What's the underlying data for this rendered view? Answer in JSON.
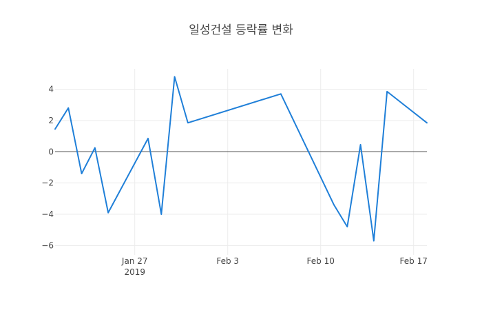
{
  "chart_data": {
    "type": "line",
    "title": "일성건설 등락률 변화",
    "xlabel": "",
    "ylabel": "",
    "x_tick_labels": [
      "Jan 27",
      "Feb 3",
      "Feb 10",
      "Feb 17"
    ],
    "x_tick_sublabels": [
      "2019",
      "",
      "",
      ""
    ],
    "x_tick_dates": [
      "2019-01-27",
      "2019-02-03",
      "2019-02-10",
      "2019-02-17"
    ],
    "xlim": [
      "2019-01-21",
      "2019-02-18"
    ],
    "ylim": [
      -6.6,
      5.3
    ],
    "y_ticks": [
      -6,
      -4,
      -2,
      0,
      2,
      4
    ],
    "y_tick_labels": [
      "−6",
      "−4",
      "−2",
      "0",
      "2",
      "4"
    ],
    "grid": true,
    "zero_line": true,
    "line_color": "#1f7fd8",
    "series": [
      {
        "x": [
          "2019-01-21",
          "2019-01-22",
          "2019-01-23",
          "2019-01-24",
          "2019-01-25",
          "2019-01-28",
          "2019-01-29",
          "2019-01-30",
          "2019-01-31",
          "2019-02-07",
          "2019-02-11",
          "2019-02-12",
          "2019-02-13",
          "2019-02-14",
          "2019-02-15",
          "2019-02-18"
        ],
        "values": [
          1.45,
          2.8,
          -1.4,
          0.25,
          -3.9,
          0.85,
          -4.0,
          4.8,
          1.85,
          3.7,
          -3.4,
          -4.8,
          0.45,
          -5.7,
          3.85,
          1.85
        ]
      }
    ]
  }
}
